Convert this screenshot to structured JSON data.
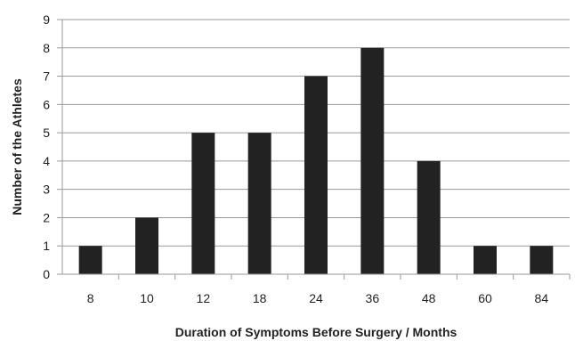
{
  "chart_data": {
    "type": "bar",
    "categories": [
      "8",
      "10",
      "12",
      "18",
      "24",
      "36",
      "48",
      "60",
      "84"
    ],
    "values": [
      1,
      2,
      5,
      5,
      7,
      8,
      4,
      1,
      1
    ],
    "title": "",
    "xlabel": "Duration of Symptoms Before Surgery / Months",
    "ylabel": "Number of the Athletes",
    "ylim": [
      0,
      9
    ],
    "yticks": [
      "0",
      "1",
      "2",
      "3",
      "4",
      "5",
      "6",
      "7",
      "8",
      "9"
    ],
    "grid": true,
    "bar_color": "#222222",
    "grid_color": "#9a9a9a",
    "legend": "none"
  }
}
